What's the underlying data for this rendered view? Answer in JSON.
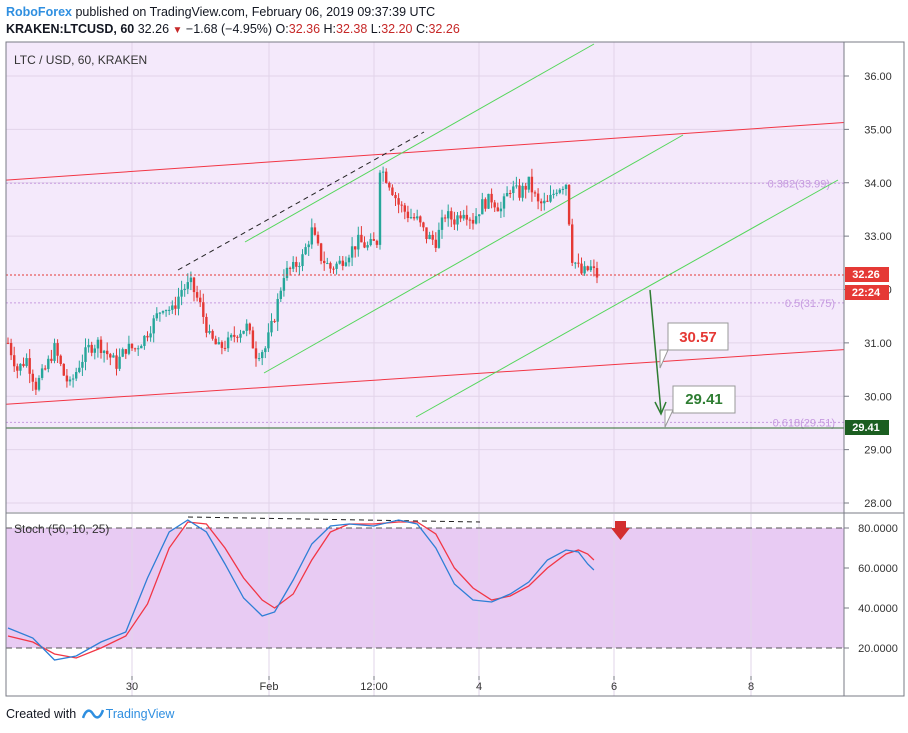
{
  "header": {
    "brand": "RoboForex",
    "published": "published on TradingView.com, February 06, 2019 09:37:39 UTC",
    "symbol": "KRAKEN:LTCUSD, 60",
    "last": "32.26",
    "arrow": "▼",
    "change": "−1.68 (−4.95%)",
    "o_label": "O:",
    "o_value": "32.36",
    "h_label": "H:",
    "h_value": "32.38",
    "l_label": "L:",
    "l_value": "32.20",
    "c_label": "C:",
    "c_value": "32.26"
  },
  "chart_title": "LTC / USD, 60, KRAKEN",
  "price_ticks": [
    "36.00",
    "35.00",
    "34.00",
    "33.00",
    "32.00",
    "31.00",
    "30.00",
    "29.00",
    "28.00"
  ],
  "price_badges": [
    {
      "text": "32.26",
      "color": "#e53935"
    },
    {
      "text": "22:24",
      "color": "#e53935"
    },
    {
      "text": "29.41",
      "color": "#1b5e20"
    }
  ],
  "fib_labels": [
    "0.382(33.99)",
    "0.5(31.75)",
    "0.618(29.51)"
  ],
  "callouts": {
    "target1": "30.57",
    "target2": "29.41"
  },
  "stoch": {
    "title": "Stoch (50, 10, 25)",
    "ticks": [
      "80.0000",
      "60.0000",
      "40.0000",
      "20.0000"
    ]
  },
  "x_ticks": [
    "30",
    "Feb",
    "12:00",
    "4",
    "6",
    "8"
  ],
  "footer": {
    "created": "Created with",
    "brand": "TradingView"
  },
  "colors": {
    "background": "#f4e9fb",
    "stoch_band": "#e8cbf3",
    "up": "#26a69a",
    "down": "#e53935",
    "channel": "#54d65a",
    "trendline": "#f23645",
    "fib": "#c69ae0",
    "stoch_k": "#2e7fd6",
    "stoch_d": "#f23645"
  },
  "chart_data": {
    "type": "candlestick",
    "symbol": "LTC/USD",
    "exchange": "KRAKEN",
    "interval": "60",
    "ylim": [
      27.5,
      36.6
    ],
    "price_path": [
      [
        0,
        31.0
      ],
      [
        3,
        30.5
      ],
      [
        6,
        30.7
      ],
      [
        9,
        30.2
      ],
      [
        12,
        30.5
      ],
      [
        15,
        30.9
      ],
      [
        18,
        30.4
      ],
      [
        20,
        30.2
      ],
      [
        23,
        30.6
      ],
      [
        26,
        30.9
      ],
      [
        29,
        31.0
      ],
      [
        32,
        30.8
      ],
      [
        35,
        30.6
      ],
      [
        38,
        30.9
      ],
      [
        41,
        30.9
      ],
      [
        44,
        31.1
      ],
      [
        47,
        31.4
      ],
      [
        50,
        31.7
      ],
      [
        53,
        31.6
      ],
      [
        56,
        32.0
      ],
      [
        59,
        32.1
      ],
      [
        62,
        31.7
      ],
      [
        65,
        31.1
      ],
      [
        68,
        30.9
      ],
      [
        71,
        31.0
      ],
      [
        74,
        31.2
      ],
      [
        77,
        31.3
      ],
      [
        80,
        30.8
      ],
      [
        83,
        30.9
      ],
      [
        86,
        31.5
      ],
      [
        89,
        32.3
      ],
      [
        92,
        32.4
      ],
      [
        95,
        32.6
      ],
      [
        98,
        33.1
      ],
      [
        101,
        32.6
      ],
      [
        104,
        32.4
      ],
      [
        107,
        32.5
      ],
      [
        110,
        32.7
      ],
      [
        113,
        32.9
      ],
      [
        116,
        32.8
      ],
      [
        119,
        32.9
      ],
      [
        120,
        34.3
      ],
      [
        123,
        34.0
      ],
      [
        126,
        33.6
      ],
      [
        129,
        33.4
      ],
      [
        132,
        33.3
      ],
      [
        135,
        33.0
      ],
      [
        138,
        32.9
      ],
      [
        141,
        33.4
      ],
      [
        144,
        33.3
      ],
      [
        147,
        33.5
      ],
      [
        150,
        33.3
      ],
      [
        153,
        33.6
      ],
      [
        156,
        33.7
      ],
      [
        159,
        33.5
      ],
      [
        162,
        33.9
      ],
      [
        165,
        33.8
      ],
      [
        168,
        34.0
      ],
      [
        171,
        33.6
      ],
      [
        174,
        33.6
      ],
      [
        177,
        33.9
      ],
      [
        180,
        34.0
      ],
      [
        182,
        32.6
      ],
      [
        185,
        32.3
      ],
      [
        188,
        32.4
      ],
      [
        190,
        32.26
      ]
    ],
    "channel_lines": [
      {
        "from": [
          75,
          31.0
        ],
        "to": [
          174,
          35.45
        ]
      },
      {
        "from": [
          123,
          29.5
        ],
        "to": [
          245,
          34.3
        ]
      }
    ],
    "trendlines": [
      {
        "from": [
          0,
          34.05
        ],
        "to": [
          250,
          35.05
        ]
      },
      {
        "from": [
          0,
          29.85
        ],
        "to": [
          250,
          30.8
        ]
      }
    ],
    "fibonacci": [
      {
        "level": 0.382,
        "price": 33.99
      },
      {
        "level": 0.5,
        "price": 31.75
      },
      {
        "level": 0.618,
        "price": 29.51
      }
    ],
    "current_price": 32.26,
    "targets": [
      30.57,
      29.41
    ],
    "stochastic": {
      "params": [
        50,
        10,
        25
      ],
      "ylim": [
        0,
        100
      ],
      "k": [
        [
          0,
          30
        ],
        [
          8,
          25
        ],
        [
          15,
          14
        ],
        [
          22,
          16
        ],
        [
          30,
          23
        ],
        [
          38,
          28
        ],
        [
          45,
          55
        ],
        [
          52,
          78
        ],
        [
          58,
          84
        ],
        [
          64,
          78
        ],
        [
          70,
          62
        ],
        [
          76,
          45
        ],
        [
          82,
          36
        ],
        [
          86,
          38
        ],
        [
          92,
          54
        ],
        [
          98,
          72
        ],
        [
          104,
          81
        ],
        [
          110,
          82
        ],
        [
          118,
          81
        ],
        [
          126,
          84
        ],
        [
          132,
          82
        ],
        [
          138,
          70
        ],
        [
          144,
          52
        ],
        [
          150,
          44
        ],
        [
          156,
          43
        ],
        [
          162,
          47
        ],
        [
          168,
          53
        ],
        [
          174,
          64
        ],
        [
          180,
          69
        ],
        [
          184,
          68
        ],
        [
          187,
          62
        ],
        [
          189,
          59
        ]
      ],
      "d": [
        [
          0,
          26
        ],
        [
          8,
          23
        ],
        [
          15,
          17
        ],
        [
          22,
          15
        ],
        [
          30,
          20
        ],
        [
          38,
          26
        ],
        [
          45,
          42
        ],
        [
          52,
          70
        ],
        [
          58,
          83
        ],
        [
          64,
          82
        ],
        [
          70,
          70
        ],
        [
          76,
          55
        ],
        [
          82,
          44
        ],
        [
          86,
          40
        ],
        [
          92,
          47
        ],
        [
          98,
          64
        ],
        [
          104,
          78
        ],
        [
          110,
          82
        ],
        [
          118,
          82
        ],
        [
          126,
          83
        ],
        [
          132,
          83
        ],
        [
          138,
          77
        ],
        [
          144,
          60
        ],
        [
          150,
          50
        ],
        [
          156,
          44
        ],
        [
          162,
          46
        ],
        [
          168,
          51
        ],
        [
          174,
          60
        ],
        [
          180,
          67
        ],
        [
          184,
          69
        ],
        [
          187,
          67
        ],
        [
          189,
          64
        ]
      ]
    }
  }
}
